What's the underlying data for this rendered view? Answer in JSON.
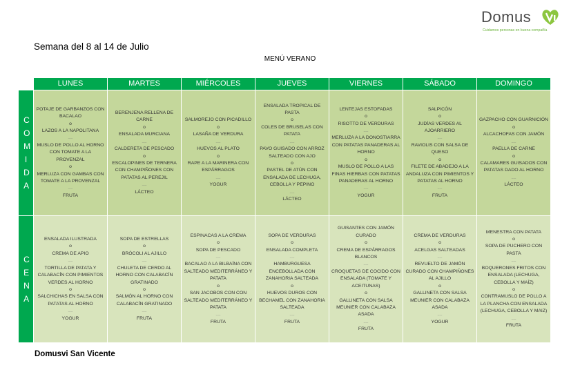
{
  "logo": {
    "text": "Domus",
    "tagline": "Cuidamos personas en buena compañía",
    "accent": "#8cc63f"
  },
  "header": {
    "week": "Semana del 8 al 14 de Julio",
    "title": "MENÚ VERANO"
  },
  "colors": {
    "header_green": "#00a84f",
    "comida_bg": "#c4d79b",
    "cena_bg": "#d8e4bc"
  },
  "days": [
    "LUNES",
    "MARTES",
    "MIÉRCOLES",
    "JUEVES",
    "VIERNES",
    "SÁBADO",
    "DOMINGO"
  ],
  "meals": [
    {
      "label": "COMIDA",
      "cells": [
        [
          "POTAJE DE GARBANZOS CON BACALAO",
          "o",
          "LAZOS A LA NAPOLITANA",
          "-----",
          "MUSLO DE POLLO AL HORNO CON TOMATE A LA PROVENZAL",
          "o",
          "MERLUZA CON GAMBAS CON TOMATE A LA PROVENZAL",
          "-----",
          "FRUTA"
        ],
        [
          "BERENJENA RELLENA DE CARNE",
          "o",
          "ENSALADA MURCIANA",
          "-----",
          "CALDERETA DE PESCADO",
          "o",
          "ESCALOPINES DE TERNERA CON CHAMPIÑONES CON PATATAS AL PEREJIL",
          "-----",
          "LÁCTEO"
        ],
        [
          "SALMOREJO CON PICADILLO",
          "o",
          "LASAÑA DE VERDURA",
          "-----",
          "HUEVOS AL PLATO",
          "o",
          "RAPE A LA MARINERA CON ESPÁRRAGOS",
          "-----",
          "YOGUR"
        ],
        [
          "ENSALADA TROPICAL DE PASTA",
          "o",
          "COLES DE BRUSELAS CON PATATA",
          "-----",
          "PAVO GUISADO CON ARROZ SALTEADO CON AJO",
          "o",
          "PASTEL DE ATÚN CON ENSALADA DE LECHUGA, CEBOLLA Y PEPINO",
          "-----",
          "LÁCTEO"
        ],
        [
          "LENTEJAS ESTOFADAS",
          "o",
          "RISOTTO DE VERDURAS",
          "-----",
          "MERLUZA A LA DONOSTIARRA CON PATATAS PANADERAS AL HORNO",
          "o",
          "MUSLO DE POLLO A LAS FINAS HIERBAS CON PATATAS PANADERAS AL HORNO",
          "-----",
          "YOGUR"
        ],
        [
          "SALPICÓN",
          "o",
          "JUDÍAS VERDES AL AJOARRIERO",
          "-----",
          "RAVIOLIS CON SALSA DE QUESO",
          "o",
          "FILETE DE ABADEJO A LA ANDALUZA CON PIMIENTOS Y PATATAS AL HORNO",
          "-----",
          "FRUTA"
        ],
        [
          "GAZPACHO CON GUARNICIÓN",
          "o",
          "ALCACHOFAS CON JAMÓN",
          "-----",
          "PAELLA DE CARNE",
          "o",
          "CALAMARES GUISADOS CON PATATAS DADO AL HORNO",
          "-----",
          "LÁCTEO"
        ]
      ]
    },
    {
      "label": "CENA",
      "cells": [
        [
          "ENSALADA ILUSTRADA",
          "o",
          "CREMA DE APIO",
          "-----",
          "TORTILLA DE PATATA Y CALABACÍN CON PIMIENTOS VERDES AL HORNO",
          "o",
          "SALCHICHAS EN SALSA CON PATATAS AL HORNO",
          "-----",
          "YOGUR"
        ],
        [
          "SOPA DE ESTRELLAS",
          "o",
          "BRÓCOLI AL AJILLO",
          "-----",
          "CHULETA DE CERDO AL HORNO CON CALABACÍN GRATINADO",
          "o",
          "SALMÓN AL HORNO CON CALABACÍN GRATINADO",
          "-----",
          "FRUTA"
        ],
        [
          "ESPINACAS A LA CREMA",
          "o",
          "SOPA DE PESCADO",
          "-----",
          "BACALAO A LA BILBAÍNA CON SALTEADO MEDITERRÁNEO Y PATATA",
          "o",
          "SAN JACOBOS CON  CON SALTEADO MEDITERRÁNEO Y PATATA",
          "-----",
          "FRUTA"
        ],
        [
          "SOPA DE VERDURAS",
          "o",
          "ENSALADA COMPLETA",
          "-----",
          "HAMBURGUESA ENCEBOLLADA CON ZANAHORIA SALTEADA",
          "o",
          "HUEVOS DUROS CON BECHAMEL CON ZANAHORIA SALTEADA",
          "-----",
          "FRUTA"
        ],
        [
          "GUISANTES CON JAMÓN CURADO",
          "o",
          "CREMA DE ESPÁRRAGOS BLANCOS",
          "-----",
          "CROQUETAS DE COCIDO CON ENSALADA (TOMATE Y ACEITUNAS)",
          "o",
          "GALLINETA CON SALSA MEUNIER CON CALABAZA ASADA",
          "-----",
          "FRUTA"
        ],
        [
          "CREMA DE VERDURAS",
          "o",
          "ACELGAS SALTEADAS",
          "-----",
          "REVUELTO DE JAMÓN CURADO CON CHAMPIÑONES AL AJILLO",
          "o",
          "GALLINETA CON SALSA MEUNIER CON CALABAZA ASADA",
          "-----",
          "YOGUR"
        ],
        [
          "MENESTRA CON PATATA",
          "o",
          "SOPA DE PUCHERO CON PASTA",
          "-----",
          "BOQUERONES FRITOS CON ENSALADA (LECHUGA, CEBOLLA Y MAÍZ)",
          "o",
          "CONTRAMUSLO DE POLLO A LA PLANCHA CON ENSALADA (LECHUGA, CEBOLLA Y MAIZ)",
          "-----",
          "FRUTA"
        ]
      ]
    }
  ],
  "footer": "Domusvi San Vicente"
}
